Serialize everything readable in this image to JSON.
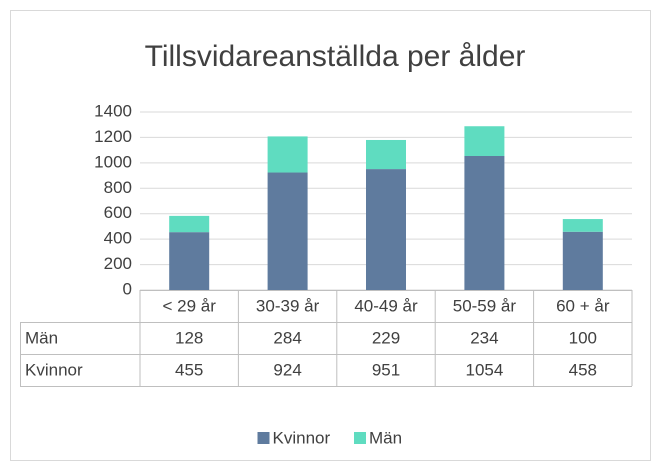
{
  "chart_data": {
    "type": "bar",
    "stacked": true,
    "title": "Tillsvidareanställda per ålder",
    "categories": [
      "< 29 år",
      "30-39 år",
      "40-49 år",
      "50-59 år",
      "60 + år"
    ],
    "series": [
      {
        "name": "Kvinnor",
        "color": "#5f7b9e",
        "values": [
          455,
          924,
          951,
          1054,
          458
        ]
      },
      {
        "name": "Män",
        "color": "#5fdcc0",
        "values": [
          128,
          284,
          229,
          234,
          100
        ]
      }
    ],
    "ylim": [
      0,
      1400
    ],
    "yticks": [
      0,
      200,
      400,
      600,
      800,
      1000,
      1200,
      1400
    ],
    "grid": true,
    "data_table": true,
    "legend": "bottom"
  }
}
